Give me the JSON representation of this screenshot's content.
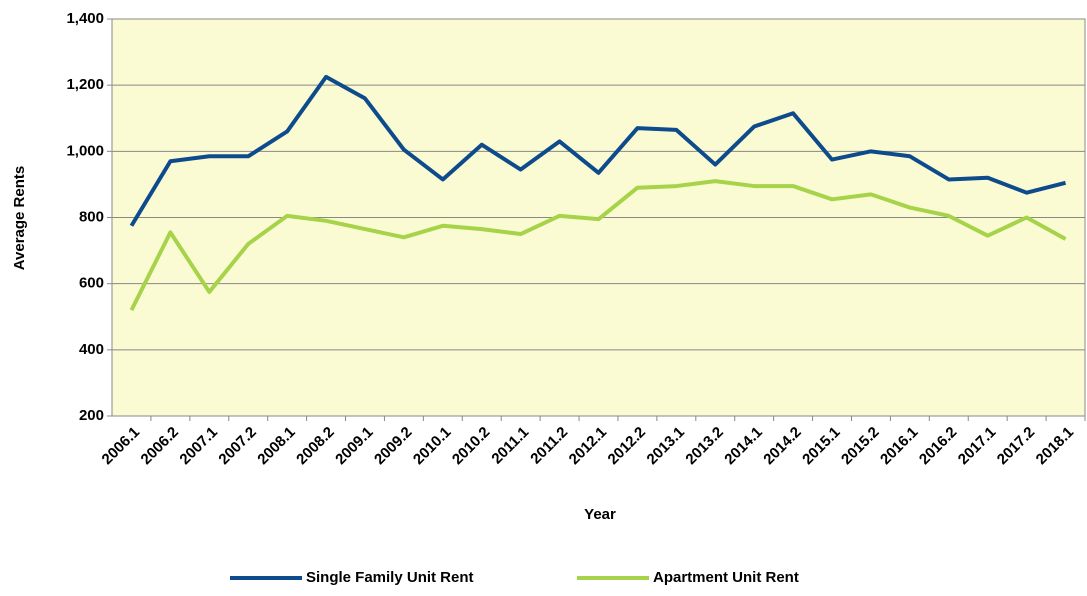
{
  "chart_data": {
    "type": "line",
    "x_label": "Year",
    "y_label": "Average Rents",
    "categories": [
      "2006.1",
      "2006.2",
      "2007.1",
      "2007.2",
      "2008.1",
      "2008.2",
      "2009.1",
      "2009.2",
      "2010.1",
      "2010.2",
      "2011.1",
      "2011.2",
      "2012.1",
      "2012.2",
      "2013.1",
      "2013.2",
      "2014.1",
      "2014.2",
      "2015.1",
      "2015.2",
      "2016.1",
      "2016.2",
      "2017.1",
      "2017.2",
      "2018.1"
    ],
    "series": [
      {
        "name": "Single Family Unit Rent",
        "color": "#0e4b8c",
        "values": [
          775,
          970,
          985,
          985,
          1060,
          1225,
          1160,
          1005,
          915,
          1020,
          945,
          1030,
          935,
          1070,
          1065,
          960,
          1075,
          1115,
          975,
          1000,
          985,
          915,
          920,
          875,
          905
        ]
      },
      {
        "name": "Apartment Unit Rent",
        "color": "#a6d34a",
        "values": [
          520,
          755,
          575,
          720,
          805,
          790,
          765,
          740,
          775,
          765,
          750,
          805,
          795,
          890,
          895,
          910,
          895,
          895,
          855,
          870,
          830,
          805,
          745,
          800,
          735
        ]
      }
    ],
    "ylim": [
      200,
      1400
    ],
    "yticks": [
      200,
      400,
      600,
      800,
      {
        "value": 1000,
        "label": "1,000"
      },
      {
        "value": 1200,
        "label": "1,200"
      },
      {
        "value": 1400,
        "label": "1,400"
      }
    ],
    "grid": true,
    "legend": "bottom",
    "background": "#fbfbd3"
  }
}
